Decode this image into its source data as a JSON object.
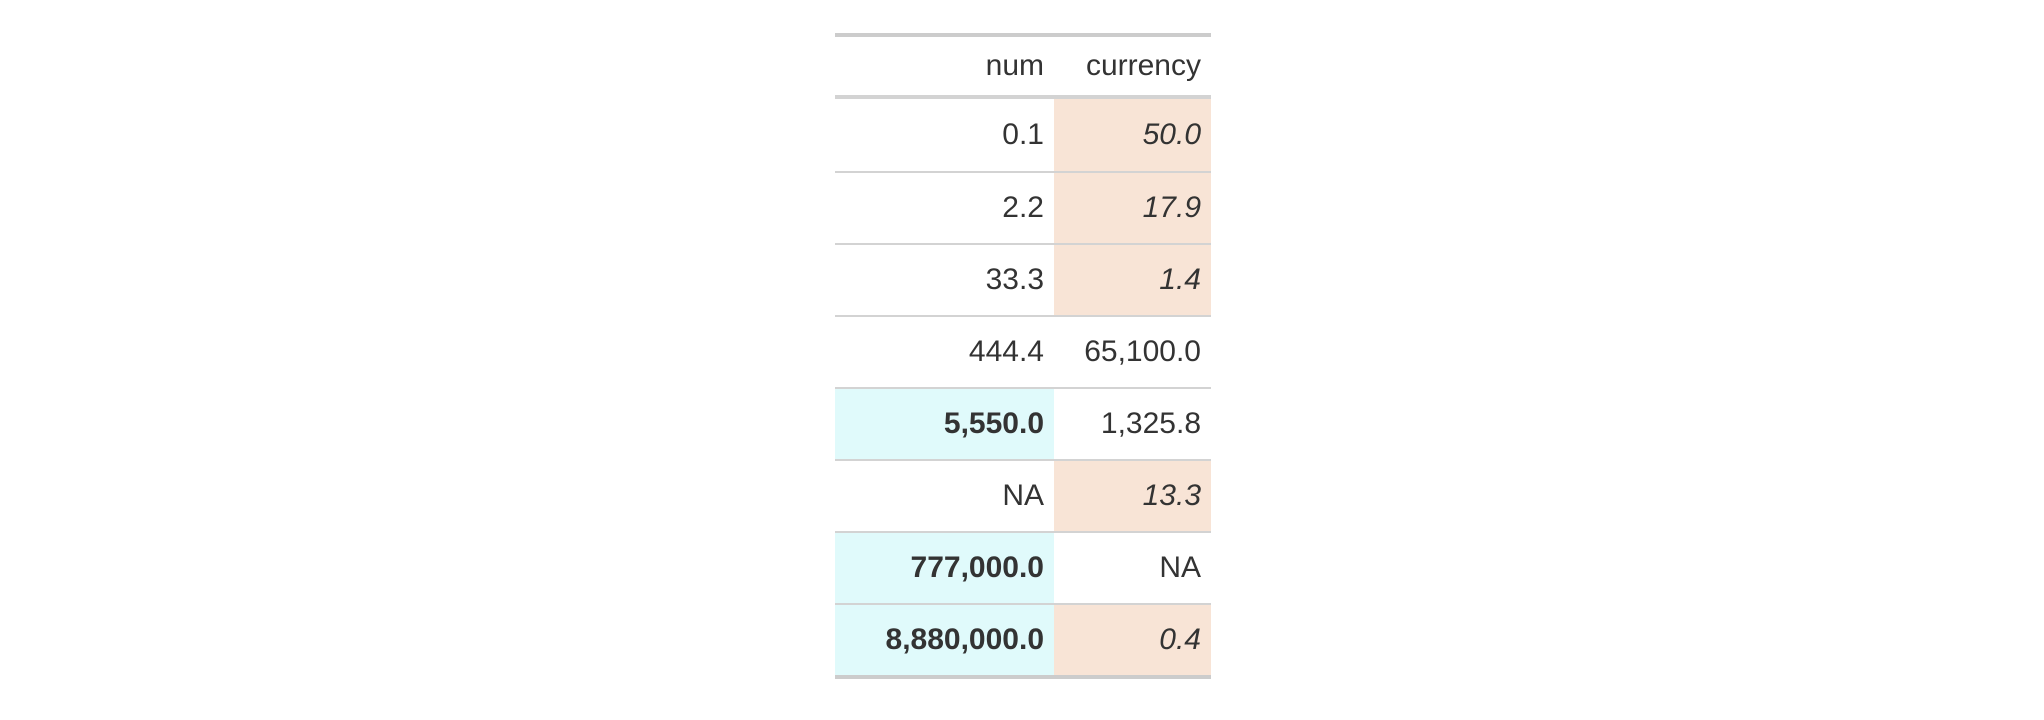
{
  "chart_data": {
    "type": "table",
    "columns": [
      "num",
      "currency"
    ],
    "rows": [
      [
        "0.1",
        "50.0"
      ],
      [
        "2.2",
        "17.9"
      ],
      [
        "33.3",
        "1.4"
      ],
      [
        "444.4",
        "65,100.0"
      ],
      [
        "5,550.0",
        "1,325.8"
      ],
      [
        "NA",
        "13.3"
      ],
      [
        "777,000.0",
        "NA"
      ],
      [
        "8,880,000.0",
        "0.4"
      ]
    ],
    "highlighted_num_cells": [
      "5,550.0",
      "777,000.0",
      "8,880,000.0"
    ],
    "highlighted_currency_cells": [
      "50.0",
      "17.9",
      "1.4",
      "13.3",
      "0.4"
    ]
  },
  "table": {
    "header": {
      "num": "num",
      "currency": "currency"
    },
    "rows": [
      {
        "num": "0.1",
        "currency": "50.0",
        "num_highlight": false,
        "currency_highlight": true
      },
      {
        "num": "2.2",
        "currency": "17.9",
        "num_highlight": false,
        "currency_highlight": true
      },
      {
        "num": "33.3",
        "currency": "1.4",
        "num_highlight": false,
        "currency_highlight": true
      },
      {
        "num": "444.4",
        "currency": "65,100.0",
        "num_highlight": false,
        "currency_highlight": false
      },
      {
        "num": "5,550.0",
        "currency": "1,325.8",
        "num_highlight": true,
        "currency_highlight": false
      },
      {
        "num": "NA",
        "currency": "13.3",
        "num_highlight": false,
        "currency_highlight": true
      },
      {
        "num": "777,000.0",
        "currency": "NA",
        "num_highlight": true,
        "currency_highlight": false
      },
      {
        "num": "8,880,000.0",
        "currency": "0.4",
        "num_highlight": true,
        "currency_highlight": true
      }
    ],
    "colors": {
      "num_highlight_bg": "#E0FAFB",
      "currency_highlight_bg": "#F8E4D6",
      "text": "#333333",
      "border_inner": "#D3D3D3",
      "border_outer": "#CCCCCC",
      "background": "#FFFFFF"
    }
  }
}
